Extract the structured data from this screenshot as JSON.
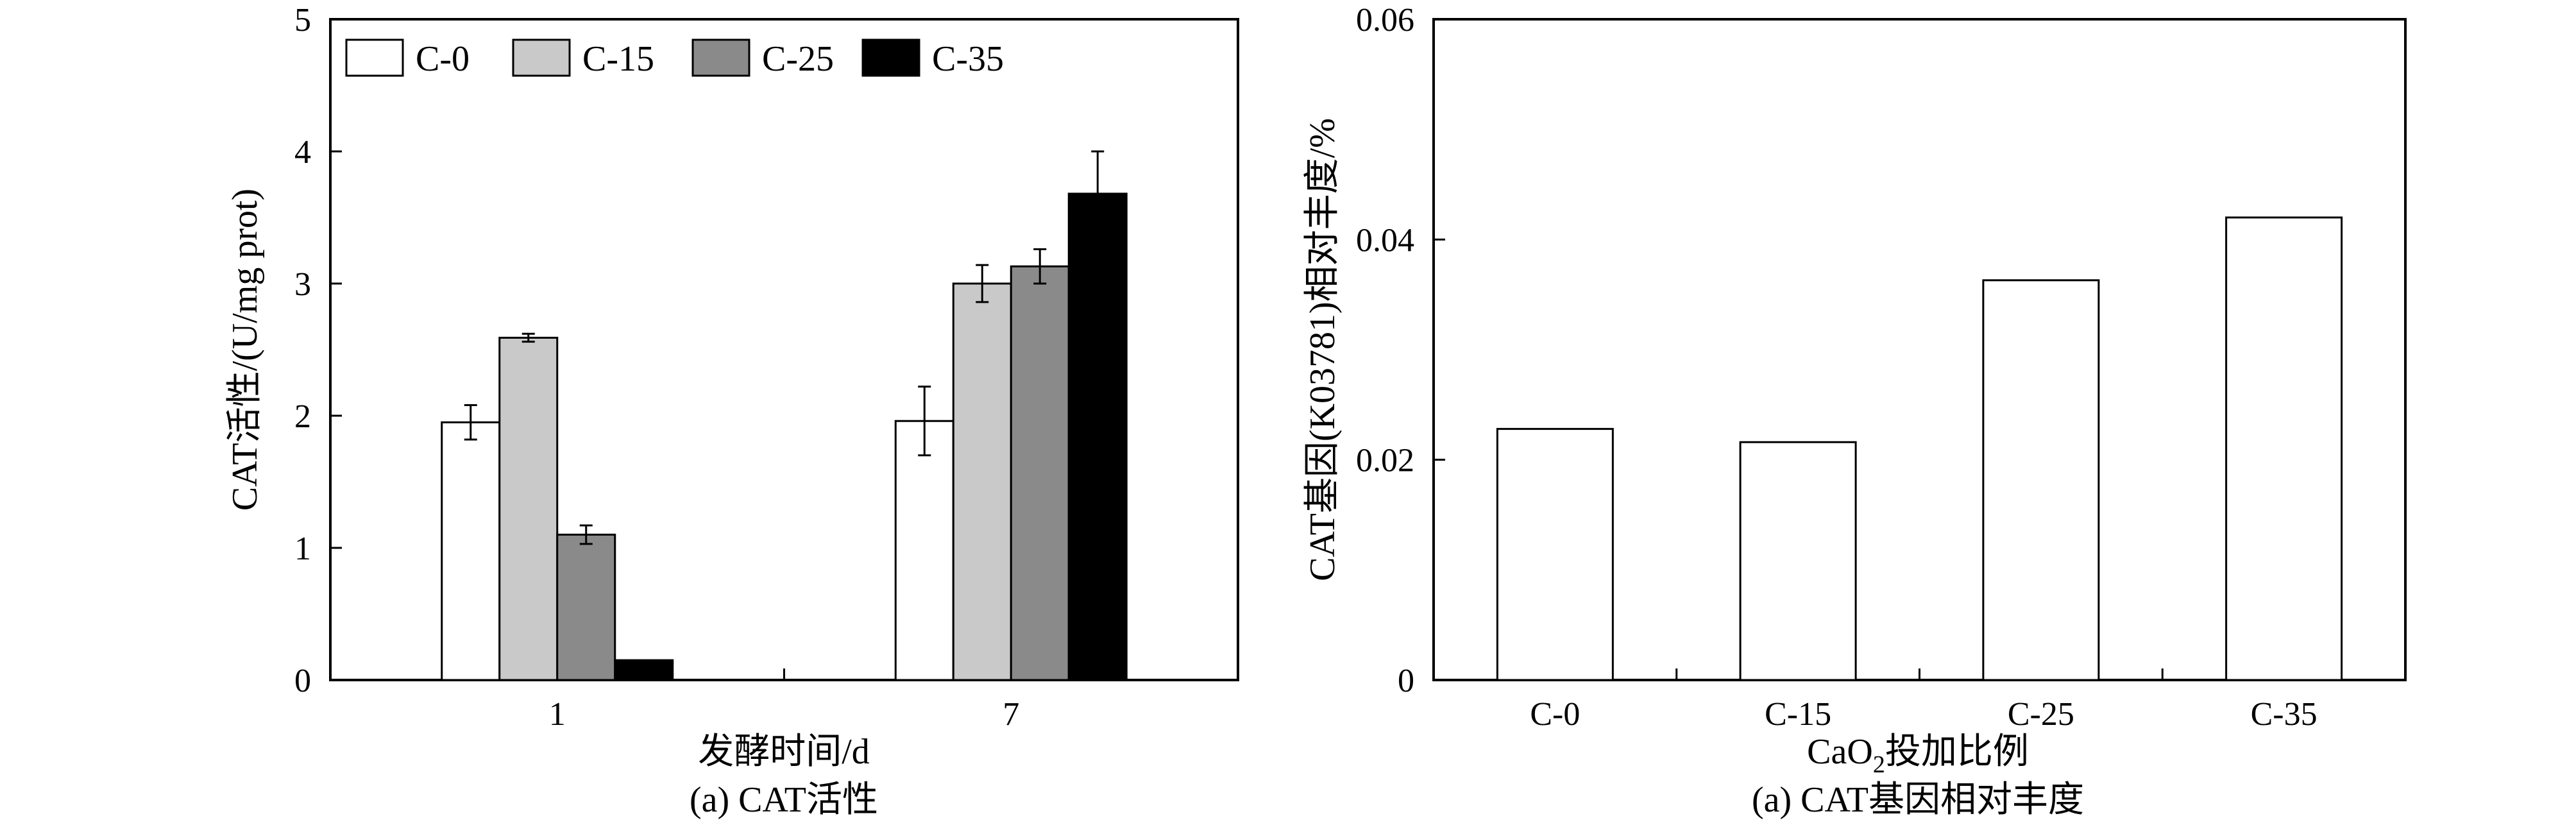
{
  "colors": {
    "C-0": "#ffffff",
    "C-15": "#c9c9c9",
    "C-25": "#8a8a8a",
    "C-35": "#000000",
    "stroke": "#000000"
  },
  "chart_data": [
    {
      "type": "bar",
      "caption": "(a) CAT活性",
      "xlabel": "发酵时间/d",
      "ylabel": "CAT活性/(U/mg prot)",
      "categories": [
        "1",
        "7"
      ],
      "ylim": [
        0,
        5
      ],
      "yticks": [
        "0",
        "1",
        "2",
        "3",
        "4",
        "5"
      ],
      "legend_position": "top-left",
      "series": [
        {
          "name": "C-0",
          "values": [
            1.95,
            1.96
          ],
          "errors": [
            0.13,
            0.26
          ]
        },
        {
          "name": "C-15",
          "values": [
            2.59,
            3.0
          ],
          "errors": [
            0.03,
            0.14
          ]
        },
        {
          "name": "C-25",
          "values": [
            1.1,
            3.13
          ],
          "errors": [
            0.07,
            0.13
          ]
        },
        {
          "name": "C-35",
          "values": [
            0.15,
            3.68
          ],
          "errors": [
            0.0,
            0.32
          ]
        }
      ]
    },
    {
      "type": "bar",
      "caption": "(a) CAT基因相对丰度",
      "xlabel_parts": [
        "CaO",
        "2",
        "投加比例"
      ],
      "ylabel": "CAT基因(K03781)相对丰度/%",
      "categories": [
        "C-0",
        "C-15",
        "C-25",
        "C-35"
      ],
      "values": [
        0.0228,
        0.0216,
        0.0363,
        0.042
      ],
      "ylim": [
        0,
        0.06
      ],
      "yticks": [
        "0",
        "0.02",
        "0.04",
        "0.06"
      ]
    }
  ]
}
